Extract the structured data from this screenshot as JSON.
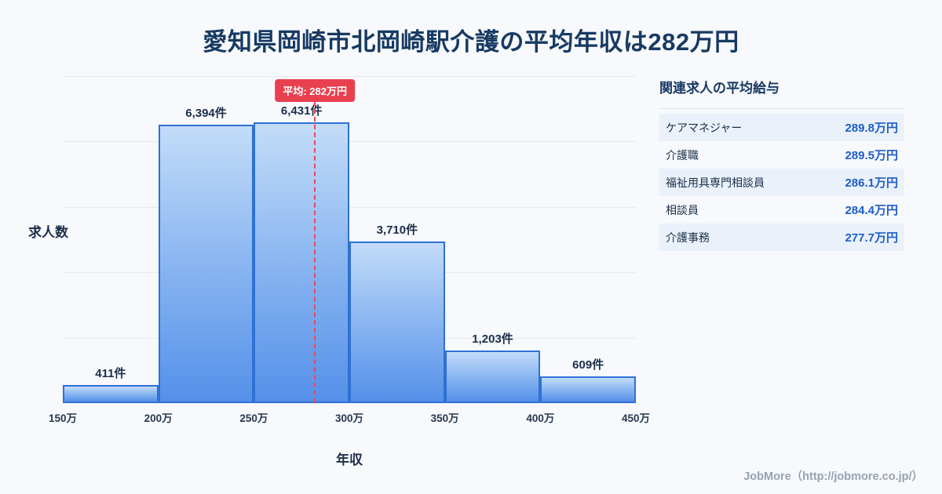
{
  "title": "愛知県岡崎市北岡崎駅介護の平均年収は282万円",
  "chart_data": {
    "type": "bar",
    "title": "愛知県岡崎市北岡崎駅介護の平均年収は282万円",
    "xlabel": "年収",
    "ylabel": "求人数",
    "bin_edges": [
      150,
      200,
      250,
      300,
      350,
      400,
      450
    ],
    "x_ticks": [
      "150万",
      "200万",
      "250万",
      "300万",
      "350万",
      "400万",
      "450万"
    ],
    "values": [
      411,
      6394,
      6431,
      3710,
      1203,
      609
    ],
    "labels": [
      "411件",
      "6,394件",
      "6,431件",
      "3,710件",
      "1,203件",
      "609件"
    ],
    "ylim": [
      0,
      7500
    ],
    "grid": true,
    "average": {
      "value": 282,
      "label": "平均: 282万円"
    }
  },
  "side_panel": {
    "title": "関連求人の平均給与",
    "rows": [
      {
        "label": "ケアマネジャー",
        "value": "289.8万円"
      },
      {
        "label": "介護職",
        "value": "289.5万円"
      },
      {
        "label": "福祉用具専門相談員",
        "value": "286.1万円"
      },
      {
        "label": "相談員",
        "value": "284.4万円"
      },
      {
        "label": "介護事務",
        "value": "277.7万円"
      }
    ]
  },
  "footer": {
    "credit": "JobMore（http://jobmore.co.jp/）"
  },
  "colors": {
    "background": "#f7f9fc",
    "title_text": "#173a63",
    "bar_fill_top": "#c3dcf8",
    "bar_fill_bottom": "#5590e9",
    "bar_border": "#2f71d4",
    "average_red": "#e8404f",
    "value_blue": "#1d5ec9",
    "row_alt_bg": "#eaf1fa",
    "gridline": "#e4e9f1",
    "footer_text": "#98a2b0"
  }
}
